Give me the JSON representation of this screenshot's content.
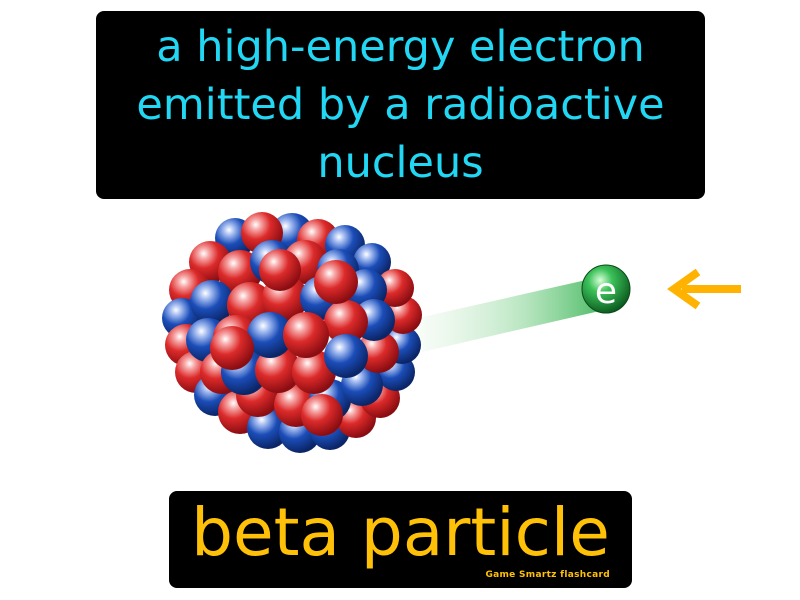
{
  "definition": "a high-energy electron emitted by a radioactive nucleus",
  "term": "beta particle",
  "electron_symbol": "e",
  "credit": "Game Smartz flashcard",
  "colors": {
    "background": "#ffffff",
    "box": "#000000",
    "definition_text": "#21d7f4",
    "term_text": "#ffc107",
    "proton": "#d8242c",
    "neutron": "#1a4fb5",
    "electron": "#1f9e3a",
    "arrow": "#ffb300"
  },
  "icons": [
    "atomic-nucleus-icon",
    "electron-icon",
    "arrow-left-icon"
  ]
}
